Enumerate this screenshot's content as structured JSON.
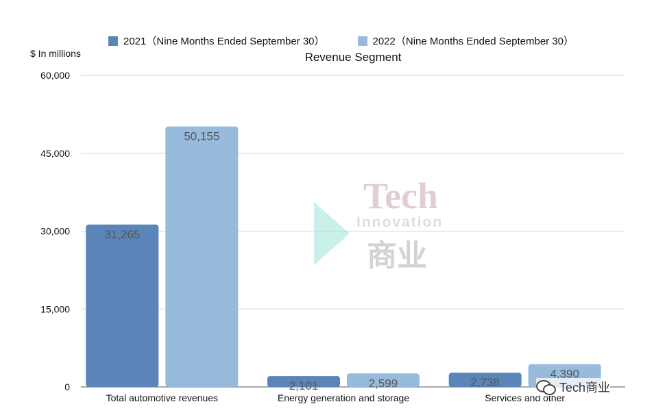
{
  "legend": {
    "series_1": "2021（Nine Months Ended September 30）",
    "series_2": "2022（Nine Months Ended September 30）"
  },
  "unit_label": "$ In millions",
  "title": "Revenue Segment",
  "watermark": {
    "line1": "Tech",
    "line2": "Innovation",
    "line3": "商业"
  },
  "footer_badge": "Tech商业",
  "colors": {
    "series_1": "#5b84b8",
    "series_2": "#98badd",
    "grid": "#d6d6d6",
    "axis": "#555555",
    "value_label": "#555555"
  },
  "chart_data": {
    "type": "bar",
    "title": "Revenue Segment",
    "ylabel": "$ In millions",
    "xlabel": "",
    "categories": [
      "Total automotive revenues",
      "Energy generation and storage",
      "Services and other"
    ],
    "series": [
      {
        "name": "2021（Nine Months Ended September 30）",
        "values": [
          31265,
          2101,
          2738
        ]
      },
      {
        "name": "2022（Nine Months Ended September 30）",
        "values": [
          50155,
          2599,
          4390
        ]
      }
    ],
    "value_labels": [
      [
        "31,265",
        "2,101",
        "2,738"
      ],
      [
        "50,155",
        "2,599",
        "4,390"
      ]
    ],
    "ylim": [
      0,
      60000
    ],
    "yticks": [
      0,
      15000,
      30000,
      45000,
      60000
    ],
    "ytick_labels": [
      "0",
      "15,000",
      "30,000",
      "45,000",
      "60,000"
    ],
    "grid": true,
    "legend_position": "top-center"
  }
}
